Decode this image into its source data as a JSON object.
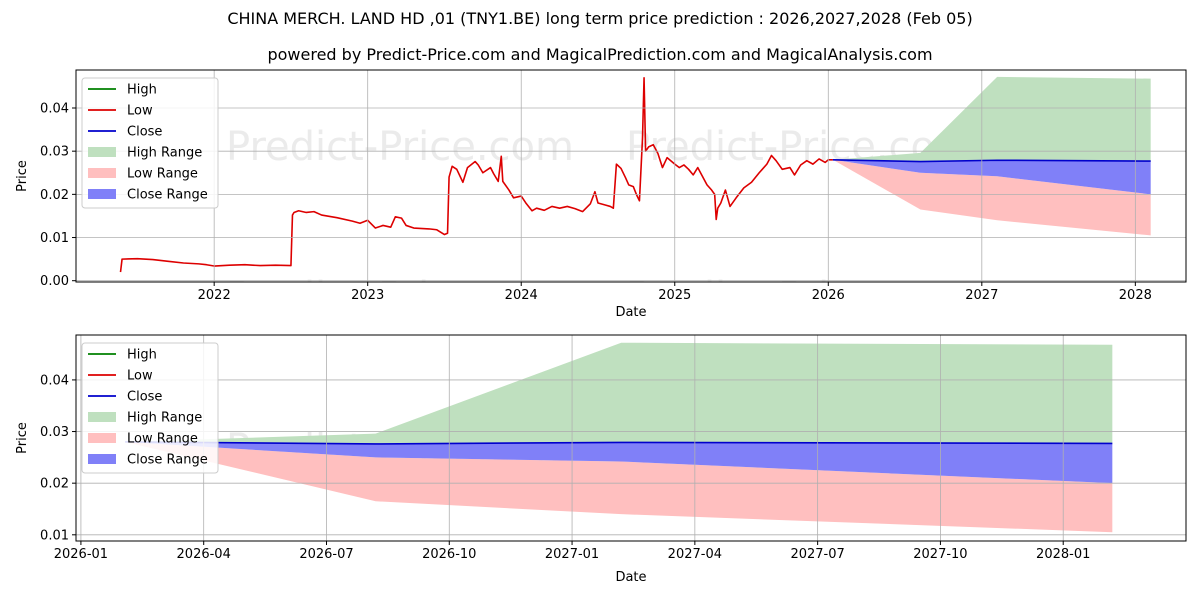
{
  "title": "CHINA MERCH. LAND HD ,01 (TNY1.BE) long term price prediction : 2026,2027,2028 (Feb 05)",
  "subtitle": "powered by Predict-Price.com and MagicalPrediction.com and MagicalAnalysis.com",
  "watermark": "Predict-Price.com",
  "colors": {
    "high": "#008000",
    "low": "#dd0000",
    "close": "#0000cc",
    "high_range": "#bfe0bf",
    "low_range": "#ffbfbf",
    "close_range": "#8080f8",
    "grid": "#b0b0b0"
  },
  "legend": [
    {
      "label": "High",
      "kind": "line",
      "color_key": "high"
    },
    {
      "label": "Low",
      "kind": "line",
      "color_key": "low"
    },
    {
      "label": "Close",
      "kind": "line",
      "color_key": "close"
    },
    {
      "label": "High Range",
      "kind": "patch",
      "color_key": "high_range"
    },
    {
      "label": "Low Range",
      "kind": "patch",
      "color_key": "low_range"
    },
    {
      "label": "Close Range",
      "kind": "patch",
      "color_key": "close_range"
    }
  ],
  "chart_data": [
    {
      "type": "line",
      "xlabel": "Date",
      "ylabel": "Price",
      "xlim": [
        2021.1,
        2028.33
      ],
      "ylim": [
        -0.0003,
        0.0488
      ],
      "xticks": [
        {
          "value": 2022.0,
          "label": "2022"
        },
        {
          "value": 2023.0,
          "label": "2023"
        },
        {
          "value": 2024.0,
          "label": "2024"
        },
        {
          "value": 2025.0,
          "label": "2025"
        },
        {
          "value": 2026.0,
          "label": "2026"
        },
        {
          "value": 2027.0,
          "label": "2027"
        },
        {
          "value": 2028.0,
          "label": "2028"
        }
      ],
      "yticks": [
        {
          "value": 0.0,
          "label": "0.00"
        },
        {
          "value": 0.01,
          "label": "0.01"
        },
        {
          "value": 0.02,
          "label": "0.02"
        },
        {
          "value": 0.03,
          "label": "0.03"
        },
        {
          "value": 0.04,
          "label": "0.04"
        }
      ],
      "legend_position": "upper-left",
      "history": {
        "name": "Low",
        "points": [
          [
            2021.39,
            0.002
          ],
          [
            2021.4,
            0.005
          ],
          [
            2021.5,
            0.0051
          ],
          [
            2021.6,
            0.0049
          ],
          [
            2021.7,
            0.0045
          ],
          [
            2021.8,
            0.0041
          ],
          [
            2021.9,
            0.0039
          ],
          [
            2021.95,
            0.0037
          ],
          [
            2022.0,
            0.0034
          ],
          [
            2022.1,
            0.0036
          ],
          [
            2022.2,
            0.0037
          ],
          [
            2022.3,
            0.0035
          ],
          [
            2022.4,
            0.0036
          ],
          [
            2022.5,
            0.0035
          ],
          [
            2022.51,
            0.0152
          ],
          [
            2022.52,
            0.0158
          ],
          [
            2022.55,
            0.0162
          ],
          [
            2022.6,
            0.0158
          ],
          [
            2022.65,
            0.016
          ],
          [
            2022.7,
            0.0152
          ],
          [
            2022.8,
            0.0146
          ],
          [
            2022.9,
            0.0138
          ],
          [
            2022.95,
            0.0133
          ],
          [
            2023.0,
            0.014
          ],
          [
            2023.05,
            0.0122
          ],
          [
            2023.1,
            0.0128
          ],
          [
            2023.15,
            0.0124
          ],
          [
            2023.18,
            0.0148
          ],
          [
            2023.22,
            0.0145
          ],
          [
            2023.25,
            0.0128
          ],
          [
            2023.3,
            0.0122
          ],
          [
            2023.4,
            0.012
          ],
          [
            2023.45,
            0.0118
          ],
          [
            2023.5,
            0.0107
          ],
          [
            2023.52,
            0.011
          ],
          [
            2023.53,
            0.024
          ],
          [
            2023.55,
            0.0265
          ],
          [
            2023.58,
            0.0258
          ],
          [
            2023.62,
            0.0228
          ],
          [
            2023.65,
            0.0262
          ],
          [
            2023.7,
            0.0276
          ],
          [
            2023.72,
            0.0268
          ],
          [
            2023.75,
            0.025
          ],
          [
            2023.8,
            0.0262
          ],
          [
            2023.82,
            0.0248
          ],
          [
            2023.85,
            0.023
          ],
          [
            2023.87,
            0.0288
          ],
          [
            2023.88,
            0.023
          ],
          [
            2023.92,
            0.021
          ],
          [
            2023.95,
            0.0192
          ],
          [
            2024.0,
            0.0196
          ],
          [
            2024.03,
            0.018
          ],
          [
            2024.07,
            0.0162
          ],
          [
            2024.1,
            0.0168
          ],
          [
            2024.15,
            0.0163
          ],
          [
            2024.2,
            0.0172
          ],
          [
            2024.25,
            0.0168
          ],
          [
            2024.3,
            0.0172
          ],
          [
            2024.35,
            0.0167
          ],
          [
            2024.4,
            0.016
          ],
          [
            2024.45,
            0.0178
          ],
          [
            2024.48,
            0.0206
          ],
          [
            2024.5,
            0.018
          ],
          [
            2024.55,
            0.0175
          ],
          [
            2024.58,
            0.0172
          ],
          [
            2024.6,
            0.0168
          ],
          [
            2024.62,
            0.027
          ],
          [
            2024.65,
            0.026
          ],
          [
            2024.68,
            0.0238
          ],
          [
            2024.7,
            0.0222
          ],
          [
            2024.73,
            0.0218
          ],
          [
            2024.75,
            0.02
          ],
          [
            2024.77,
            0.0185
          ],
          [
            2024.79,
            0.033
          ],
          [
            2024.8,
            0.047
          ],
          [
            2024.81,
            0.03
          ],
          [
            2024.83,
            0.031
          ],
          [
            2024.86,
            0.0315
          ],
          [
            2024.89,
            0.0295
          ],
          [
            2024.92,
            0.0262
          ],
          [
            2024.95,
            0.0285
          ],
          [
            2025.0,
            0.027
          ],
          [
            2025.03,
            0.0262
          ],
          [
            2025.06,
            0.0268
          ],
          [
            2025.09,
            0.0258
          ],
          [
            2025.12,
            0.0245
          ],
          [
            2025.15,
            0.0262
          ],
          [
            2025.18,
            0.0242
          ],
          [
            2025.21,
            0.0222
          ],
          [
            2025.24,
            0.021
          ],
          [
            2025.26,
            0.02
          ],
          [
            2025.27,
            0.0142
          ],
          [
            2025.28,
            0.0168
          ],
          [
            2025.3,
            0.018
          ],
          [
            2025.33,
            0.021
          ],
          [
            2025.36,
            0.0172
          ],
          [
            2025.4,
            0.0192
          ],
          [
            2025.45,
            0.0215
          ],
          [
            2025.5,
            0.0228
          ],
          [
            2025.55,
            0.025
          ],
          [
            2025.6,
            0.027
          ],
          [
            2025.63,
            0.029
          ],
          [
            2025.66,
            0.0278
          ],
          [
            2025.7,
            0.0258
          ],
          [
            2025.75,
            0.0262
          ],
          [
            2025.78,
            0.0245
          ],
          [
            2025.82,
            0.0268
          ],
          [
            2025.86,
            0.0278
          ],
          [
            2025.9,
            0.027
          ],
          [
            2025.94,
            0.0282
          ],
          [
            2025.98,
            0.0274
          ],
          [
            2026.0,
            0.028
          ],
          [
            2026.03,
            0.028
          ]
        ]
      },
      "forecast": {
        "close_line": [
          [
            2026.03,
            0.028
          ],
          [
            2026.6,
            0.0276
          ],
          [
            2027.1,
            0.0279
          ],
          [
            2028.1,
            0.0277
          ]
        ],
        "high_range": {
          "upper": [
            [
              2026.03,
              0.028
            ],
            [
              2026.6,
              0.0296
            ],
            [
              2027.1,
              0.0472
            ],
            [
              2028.1,
              0.0468
            ]
          ],
          "lower": [
            [
              2026.03,
              0.028
            ],
            [
              2026.6,
              0.0276
            ],
            [
              2027.1,
              0.0279
            ],
            [
              2028.1,
              0.0277
            ]
          ]
        },
        "close_range": {
          "upper": [
            [
              2026.03,
              0.028
            ],
            [
              2026.6,
              0.0276
            ],
            [
              2027.1,
              0.0279
            ],
            [
              2028.1,
              0.0277
            ]
          ],
          "lower": [
            [
              2026.03,
              0.028
            ],
            [
              2026.6,
              0.025
            ],
            [
              2027.1,
              0.0242
            ],
            [
              2028.1,
              0.02
            ]
          ]
        },
        "low_range": {
          "upper": [
            [
              2026.03,
              0.028
            ],
            [
              2026.6,
              0.025
            ],
            [
              2027.1,
              0.0242
            ],
            [
              2028.1,
              0.02
            ]
          ],
          "lower": [
            [
              2026.03,
              0.028
            ],
            [
              2026.6,
              0.0165
            ],
            [
              2027.1,
              0.014
            ],
            [
              2028.1,
              0.0105
            ]
          ]
        }
      }
    },
    {
      "type": "line",
      "xlabel": "Date",
      "ylabel": "Price",
      "xlim": [
        2025.99,
        2028.25
      ],
      "ylim": [
        0.0088,
        0.0487
      ],
      "xticks": [
        {
          "value": 2026.0,
          "label": "2026-01"
        },
        {
          "value": 2026.25,
          "label": "2026-04"
        },
        {
          "value": 2026.5,
          "label": "2026-07"
        },
        {
          "value": 2026.75,
          "label": "2026-10"
        },
        {
          "value": 2027.0,
          "label": "2027-01"
        },
        {
          "value": 2027.25,
          "label": "2027-04"
        },
        {
          "value": 2027.5,
          "label": "2027-07"
        },
        {
          "value": 2027.75,
          "label": "2027-10"
        },
        {
          "value": 2028.0,
          "label": "2028-01"
        }
      ],
      "yticks": [
        {
          "value": 0.01,
          "label": "0.01"
        },
        {
          "value": 0.02,
          "label": "0.02"
        },
        {
          "value": 0.03,
          "label": "0.03"
        },
        {
          "value": 0.04,
          "label": "0.04"
        }
      ],
      "legend_position": "upper-left",
      "forecast": {
        "close_line": [
          [
            2026.09,
            0.028
          ],
          [
            2026.6,
            0.0276
          ],
          [
            2027.1,
            0.0279
          ],
          [
            2028.1,
            0.0277
          ]
        ],
        "high_range": {
          "upper": [
            [
              2026.09,
              0.028
            ],
            [
              2026.6,
              0.0296
            ],
            [
              2027.1,
              0.0472
            ],
            [
              2028.1,
              0.0468
            ]
          ],
          "lower": [
            [
              2026.09,
              0.028
            ],
            [
              2026.6,
              0.0276
            ],
            [
              2027.1,
              0.0279
            ],
            [
              2028.1,
              0.0277
            ]
          ]
        },
        "close_range": {
          "upper": [
            [
              2026.09,
              0.028
            ],
            [
              2026.6,
              0.0276
            ],
            [
              2027.1,
              0.0279
            ],
            [
              2028.1,
              0.0277
            ]
          ],
          "lower": [
            [
              2026.09,
              0.028
            ],
            [
              2026.6,
              0.025
            ],
            [
              2027.1,
              0.0242
            ],
            [
              2028.1,
              0.02
            ]
          ]
        },
        "low_range": {
          "upper": [
            [
              2026.09,
              0.028
            ],
            [
              2026.6,
              0.025
            ],
            [
              2027.1,
              0.0242
            ],
            [
              2028.1,
              0.02
            ]
          ],
          "lower": [
            [
              2026.09,
              0.028
            ],
            [
              2026.6,
              0.0165
            ],
            [
              2027.1,
              0.014
            ],
            [
              2028.1,
              0.0105
            ]
          ]
        }
      }
    }
  ]
}
